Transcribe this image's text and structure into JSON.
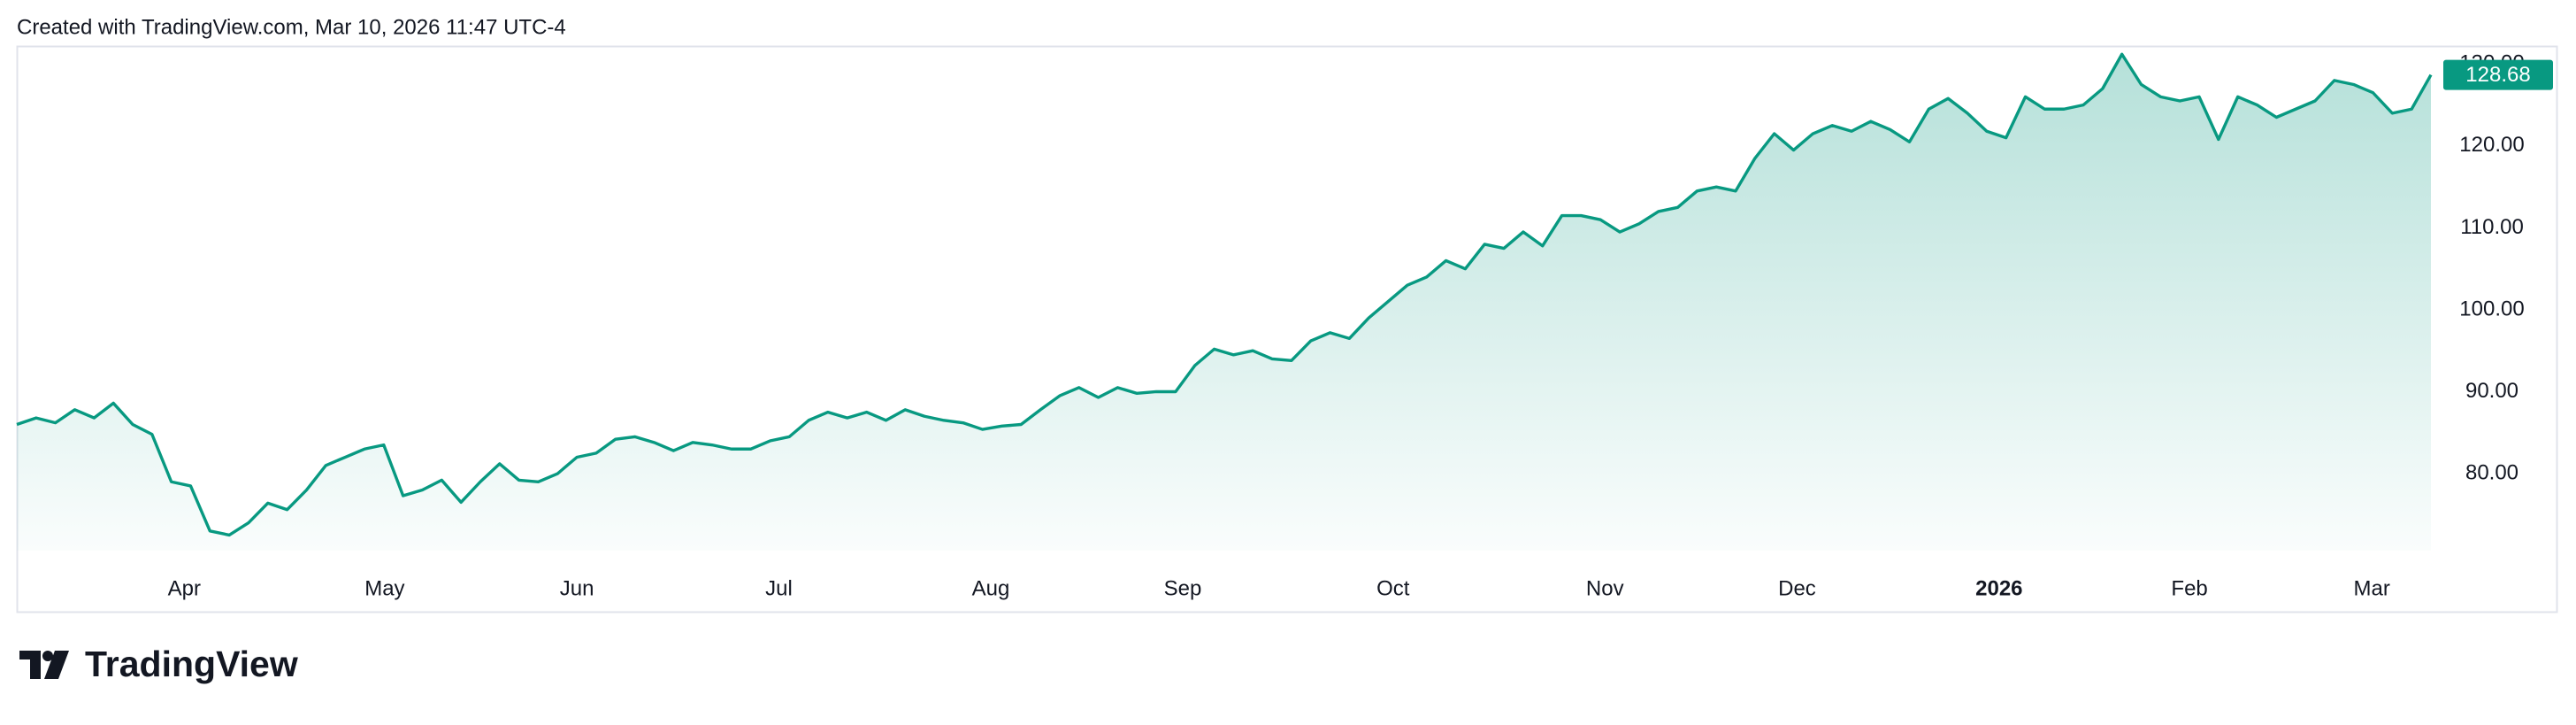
{
  "header": "Created with TradingView.com, Mar 10, 2026 11:47 UTC-4",
  "brand": "TradingView",
  "chart_data": {
    "type": "area",
    "color": "#089981",
    "values": [
      86.0,
      86.8,
      86.2,
      87.8,
      86.8,
      88.6,
      86.0,
      84.8,
      79.0,
      78.5,
      73.0,
      72.5,
      74.0,
      76.4,
      75.6,
      78.0,
      81.0,
      82.0,
      83.0,
      83.5,
      77.3,
      78.0,
      79.2,
      76.5,
      79.0,
      81.2,
      79.2,
      79.0,
      80.0,
      82.0,
      82.5,
      84.2,
      84.5,
      83.8,
      82.8,
      83.8,
      83.5,
      83.0,
      83.0,
      84.0,
      84.5,
      86.5,
      87.5,
      86.8,
      87.5,
      86.5,
      87.8,
      87.0,
      86.5,
      86.2,
      85.4,
      85.8,
      86.0,
      87.8,
      89.5,
      90.5,
      89.3,
      90.5,
      89.8,
      90.0,
      90.0,
      93.2,
      95.2,
      94.5,
      95.0,
      94.0,
      93.8,
      96.2,
      97.2,
      96.5,
      99.0,
      101.0,
      103.0,
      104.0,
      106.0,
      105.0,
      108.0,
      107.5,
      109.5,
      107.8,
      111.5,
      111.5,
      111.0,
      109.5,
      110.5,
      112.0,
      112.5,
      114.5,
      115.0,
      114.5,
      118.5,
      121.5,
      119.5,
      121.5,
      122.5,
      121.8,
      123.0,
      122.0,
      120.5,
      124.5,
      125.8,
      124.0,
      121.8,
      121.0,
      126.0,
      124.5,
      124.5,
      125.0,
      127.0,
      131.2,
      127.5,
      126.0,
      125.5,
      126.0,
      120.8,
      126.0,
      125.0,
      123.5,
      124.5,
      125.5,
      128.0,
      127.5,
      126.5,
      124.0,
      124.5,
      128.68
    ],
    "xticks": [
      {
        "value": 8.67,
        "label": "Apr"
      },
      {
        "value": 19.05,
        "label": "May"
      },
      {
        "value": 29.0,
        "label": "Jun"
      },
      {
        "value": 39.46,
        "label": "Jul"
      },
      {
        "value": 50.43,
        "label": "Aug"
      },
      {
        "value": 60.37,
        "label": "Sep"
      },
      {
        "value": 71.26,
        "label": "Oct"
      },
      {
        "value": 82.23,
        "label": "Nov"
      },
      {
        "value": 92.18,
        "label": "Dec"
      },
      {
        "value": 102.64,
        "label": "2026"
      },
      {
        "value": 112.5,
        "label": "Feb"
      },
      {
        "value": 121.94,
        "label": "Mar"
      }
    ],
    "ylim": [
      70.6,
      132.2
    ],
    "yticks": [
      {
        "value": 80,
        "label": "80.00"
      },
      {
        "value": 90,
        "label": "90.00"
      },
      {
        "value": 100,
        "label": "100.00"
      },
      {
        "value": 110,
        "label": "110.00"
      },
      {
        "value": 120,
        "label": "120.00"
      },
      {
        "value": 130,
        "label": "130.00"
      }
    ],
    "grid": false
  }
}
